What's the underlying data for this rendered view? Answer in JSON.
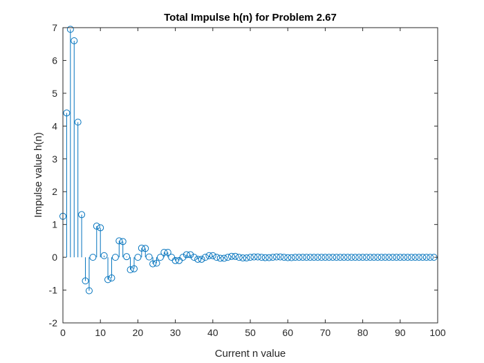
{
  "chart_data": {
    "type": "stem",
    "title": "Total Impulse h(n) for Problem 2.67",
    "xlabel": "Current n value",
    "ylabel": "Impulse value h(n)",
    "xlim": [
      0,
      100
    ],
    "ylim": [
      -2,
      7
    ],
    "xticks": [
      0,
      10,
      20,
      30,
      40,
      50,
      60,
      70,
      80,
      90,
      100
    ],
    "yticks": [
      -2,
      -1,
      0,
      1,
      2,
      3,
      4,
      5,
      6,
      7
    ],
    "grid": false,
    "series": [
      {
        "name": "h(n)",
        "color": "#0072BD",
        "x": [
          0,
          1,
          2,
          3,
          4,
          5,
          6,
          7,
          8,
          9,
          10,
          11,
          12,
          13,
          14,
          15,
          16,
          17,
          18,
          19,
          20,
          21,
          22,
          23,
          24,
          25,
          26,
          27,
          28,
          29,
          30,
          31,
          32,
          33,
          34,
          35,
          36,
          37,
          38,
          39,
          40,
          41,
          42,
          43,
          44,
          45,
          46,
          47,
          48,
          49,
          50,
          51,
          52,
          53,
          54,
          55,
          56,
          57,
          58,
          59,
          60,
          61,
          62,
          63,
          64,
          65,
          66,
          67,
          68,
          69,
          70,
          71,
          72,
          73,
          74,
          75,
          76,
          77,
          78,
          79,
          80,
          81,
          82,
          83,
          84,
          85,
          86,
          87,
          88,
          89,
          90,
          91,
          92,
          93,
          94,
          95,
          96,
          97,
          98,
          99
        ],
        "values": [
          1.25,
          4.4,
          6.95,
          6.6,
          4.12,
          1.3,
          -0.72,
          -1.02,
          0.0,
          0.95,
          0.9,
          0.05,
          -0.68,
          -0.63,
          0.0,
          0.5,
          0.48,
          0.02,
          -0.38,
          -0.35,
          0.0,
          0.28,
          0.27,
          0.01,
          -0.2,
          -0.18,
          0.0,
          0.15,
          0.15,
          0.0,
          -0.1,
          -0.1,
          0.0,
          0.08,
          0.08,
          0.0,
          -0.06,
          -0.06,
          0.0,
          0.05,
          0.05,
          0.0,
          -0.03,
          -0.03,
          0.0,
          0.03,
          0.03,
          0.0,
          -0.02,
          -0.02,
          0.0,
          0.01,
          0.01,
          0.0,
          -0.01,
          -0.01,
          0.0,
          0.01,
          0.01,
          0.0,
          -0.01,
          -0.01,
          0.0,
          0.0,
          0.0,
          0.0,
          0.0,
          0.0,
          0.0,
          0.0,
          0.0,
          0.0,
          0.0,
          0.0,
          0.0,
          0.0,
          0.0,
          0.0,
          0.0,
          0.0,
          0.0,
          0.0,
          0.0,
          0.0,
          0.0,
          0.0,
          0.0,
          0.0,
          0.0,
          0.0,
          0.0,
          0.0,
          0.0,
          0.0,
          0.0,
          0.0,
          0.0,
          0.0,
          0.0,
          0.0
        ]
      }
    ]
  }
}
